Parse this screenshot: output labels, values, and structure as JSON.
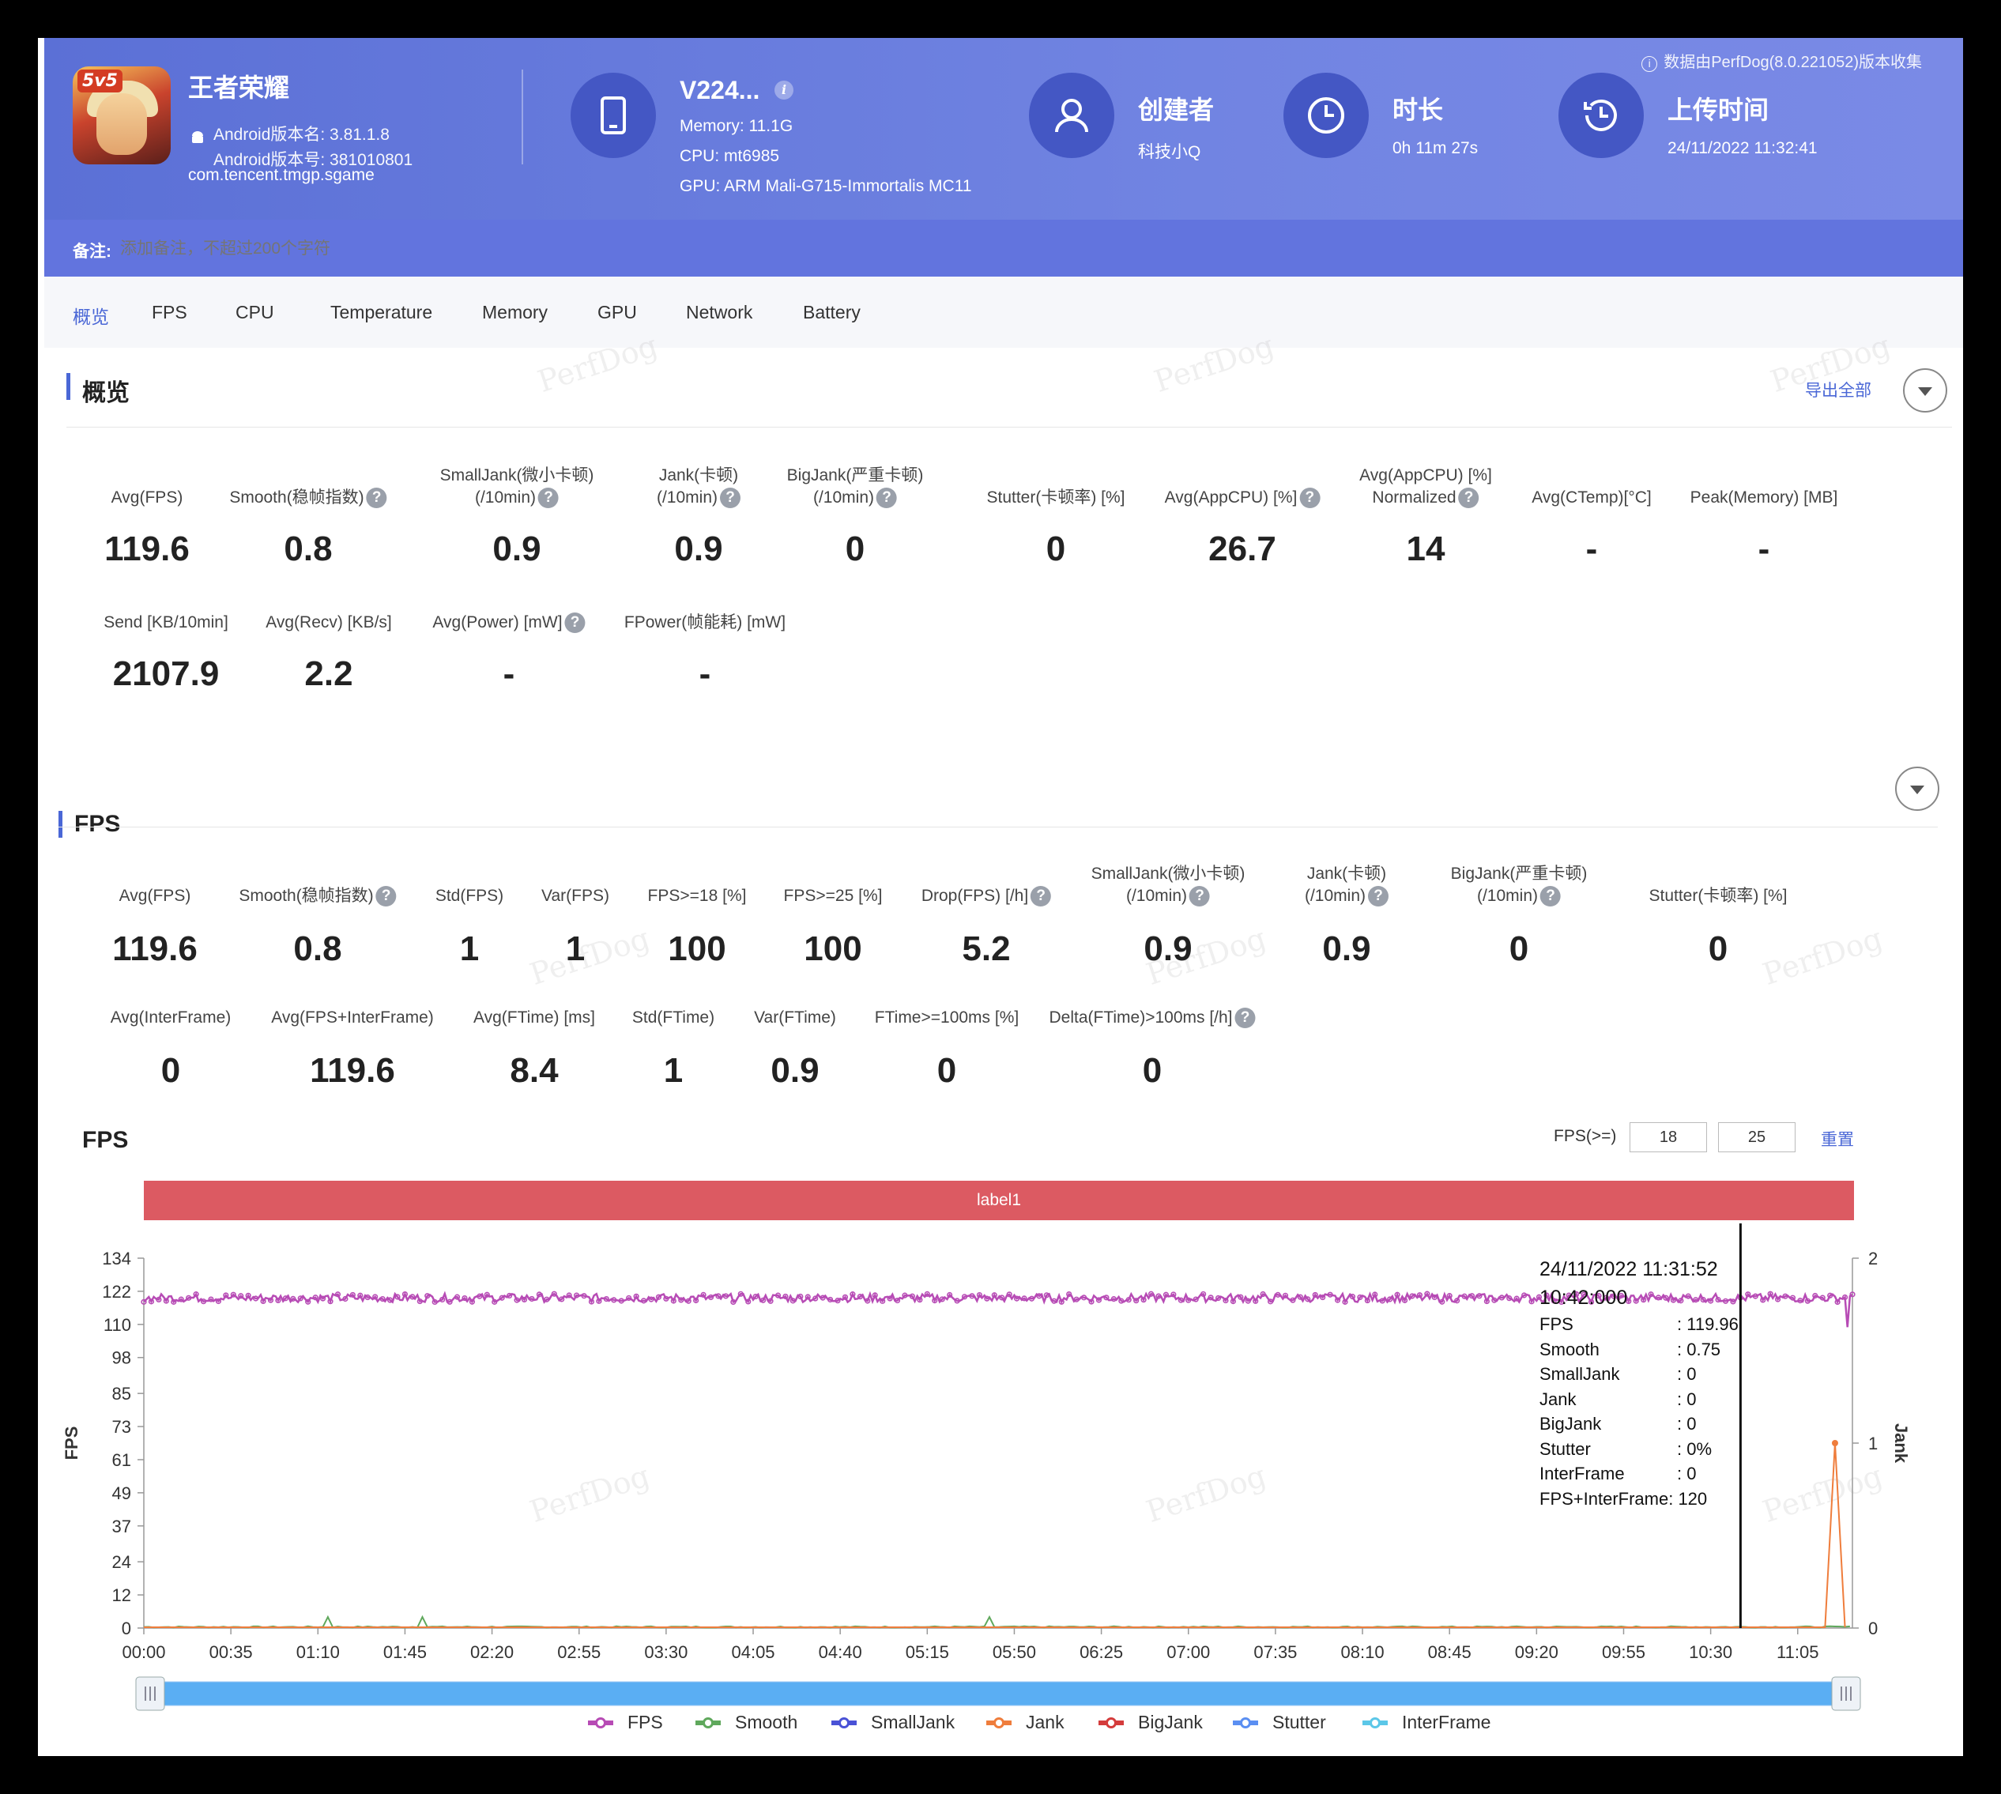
{
  "header": {
    "app": {
      "name": "王者荣耀",
      "version_name": "Android版本名: 3.81.1.8",
      "version_code": "Android版本号: 381010801",
      "package": "com.tencent.tmgp.sgame",
      "badge": "5v5"
    },
    "device": {
      "model": "V224...",
      "memory": "Memory: 11.1G",
      "cpu": "CPU: mt6985",
      "gpu": "GPU: ARM Mali-G715-Immortalis MC11"
    },
    "creator": {
      "title": "创建者",
      "value": "科技小Q"
    },
    "duration": {
      "title": "时长",
      "value": "0h 11m 27s"
    },
    "upload": {
      "title": "上传时间",
      "value": "24/11/2022 11:32:41"
    },
    "collected_by": "数据由PerfDog(8.0.221052)版本收集",
    "notes_label": "备注:",
    "notes_placeholder": "添加备注，不超过200个字符"
  },
  "tabs": [
    "概览",
    "FPS",
    "CPU",
    "Temperature",
    "Memory",
    "GPU",
    "Network",
    "Battery"
  ],
  "watermark": "PerfDog",
  "overview": {
    "title": "概览",
    "export": "导出全部",
    "row1": [
      {
        "label": "Avg(FPS)",
        "value": "119.6"
      },
      {
        "label": "Smooth(稳帧指数)",
        "value": "0.8",
        "help": true
      },
      {
        "label": "SmallJank(微小卡顿)",
        "label2": "(/10min)",
        "value": "0.9",
        "help": true
      },
      {
        "label": "Jank(卡顿)",
        "label2": "(/10min)",
        "value": "0.9",
        "help": true
      },
      {
        "label": "BigJank(严重卡顿)",
        "label2": "(/10min)",
        "value": "0",
        "help": true
      },
      {
        "label": "Stutter(卡顿率) [%]",
        "value": "0"
      },
      {
        "label": "Avg(AppCPU) [%]",
        "value": "26.7",
        "help": true
      },
      {
        "label": "Avg(AppCPU) [%]",
        "label2": "Normalized",
        "value": "14",
        "help": true
      },
      {
        "label": "Avg(CTemp)[°C]",
        "value": "-"
      },
      {
        "label": "Peak(Memory) [MB]",
        "value": "-"
      }
    ],
    "row2": [
      {
        "label": "Send [KB/10min]",
        "value": "2107.9"
      },
      {
        "label": "Avg(Recv) [KB/s]",
        "value": "2.2"
      },
      {
        "label": "Avg(Power) [mW]",
        "value": "-",
        "help": true
      },
      {
        "label": "FPower(帧能耗) [mW]",
        "value": "-"
      }
    ]
  },
  "fps_section": {
    "title": "FPS",
    "row1": [
      {
        "label": "Avg(FPS)",
        "value": "119.6"
      },
      {
        "label": "Smooth(稳帧指数)",
        "value": "0.8",
        "help": true
      },
      {
        "label": "Std(FPS)",
        "value": "1"
      },
      {
        "label": "Var(FPS)",
        "value": "1"
      },
      {
        "label": "FPS>=18 [%]",
        "value": "100"
      },
      {
        "label": "FPS>=25 [%]",
        "value": "100"
      },
      {
        "label": "Drop(FPS) [/h]",
        "value": "5.2",
        "help": true
      },
      {
        "label": "SmallJank(微小卡顿)",
        "label2": "(/10min)",
        "value": "0.9",
        "help": true
      },
      {
        "label": "Jank(卡顿)",
        "label2": "(/10min)",
        "value": "0.9",
        "help": true
      },
      {
        "label": "BigJank(严重卡顿)",
        "label2": "(/10min)",
        "value": "0",
        "help": true
      },
      {
        "label": "Stutter(卡顿率) [%]",
        "value": "0"
      }
    ],
    "row2": [
      {
        "label": "Avg(InterFrame)",
        "value": "0"
      },
      {
        "label": "Avg(FPS+InterFrame)",
        "value": "119.6"
      },
      {
        "label": "Avg(FTime) [ms]",
        "value": "8.4"
      },
      {
        "label": "Std(FTime)",
        "value": "1"
      },
      {
        "label": "Var(FTime)",
        "value": "0.9"
      },
      {
        "label": "FTime>=100ms [%]",
        "value": "0"
      },
      {
        "label": "Delta(FTime)>100ms [/h]",
        "value": "0",
        "help": true
      }
    ],
    "chart_title": "FPS",
    "fps_ge_label": "FPS(>=)",
    "fps_ge_values": [
      "18",
      "25"
    ],
    "reset": "重置",
    "band_label": "label1"
  },
  "tooltip": {
    "timestamp": "24/11/2022 11:31:52",
    "elapsed": "10:42:000",
    "rows": [
      {
        "k": "FPS",
        "v": ": 119.96"
      },
      {
        "k": "Smooth",
        "v": ": 0.75"
      },
      {
        "k": "SmallJank",
        "v": ": 0"
      },
      {
        "k": "Jank",
        "v": ": 0"
      },
      {
        "k": "BigJank",
        "v": ": 0"
      },
      {
        "k": "Stutter",
        "v": ": 0%"
      },
      {
        "k": "InterFrame",
        "v": ": 0"
      }
    ],
    "combined": "FPS+InterFrame: 120"
  },
  "chart_data": {
    "type": "line",
    "ylabel": "FPS",
    "y2label": "Jank",
    "yticks": [
      0,
      12,
      24,
      37,
      49,
      61,
      73,
      85,
      98,
      110,
      122,
      134
    ],
    "y2ticks": [
      0,
      1,
      2
    ],
    "ylim": [
      0,
      134
    ],
    "y2lim": [
      0,
      2
    ],
    "xticks": [
      "00:00",
      "00:35",
      "01:10",
      "01:45",
      "02:20",
      "02:55",
      "03:30",
      "04:05",
      "04:40",
      "05:15",
      "05:50",
      "06:25",
      "07:00",
      "07:35",
      "08:10",
      "08:45",
      "09:20",
      "09:55",
      "10:30",
      "11:05"
    ],
    "duration_s": 687,
    "cursor_s": 642,
    "series": [
      {
        "name": "FPS",
        "color": "#b74bb5",
        "axis": "left",
        "typical": 119.6,
        "range": [
          118,
          121
        ],
        "end_dip": 109
      },
      {
        "name": "Smooth",
        "color": "#5fa85c",
        "axis": "left",
        "typical": 0.8
      },
      {
        "name": "SmallJank",
        "color": "#4a52d6",
        "axis": "right",
        "typical": 0
      },
      {
        "name": "Jank",
        "color": "#ef7d3c",
        "axis": "right",
        "typical": 0,
        "spike_at_s": 680,
        "spike_value": 1
      },
      {
        "name": "BigJank",
        "color": "#d43c3c",
        "axis": "right",
        "typical": 0
      },
      {
        "name": "Stutter",
        "color": "#5b8ff2",
        "axis": "right",
        "typical": 0
      },
      {
        "name": "InterFrame",
        "color": "#5cc7e8",
        "axis": "right",
        "typical": 0
      }
    ],
    "legend_position": "bottom",
    "grid": false
  }
}
